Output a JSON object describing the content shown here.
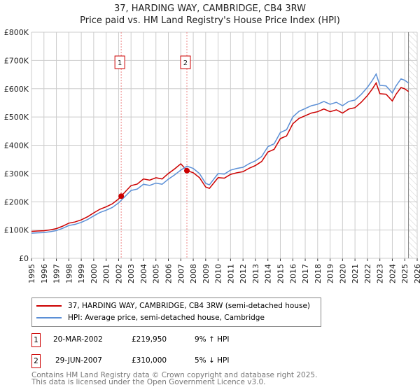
{
  "chart_data": {
    "type": "line",
    "title": "37, HARDING WAY, CAMBRIDGE, CB4 3RW",
    "subtitle": "Price paid vs. HM Land Registry's House Price Index (HPI)",
    "xlim": [
      1995,
      2026
    ],
    "ylim": [
      0,
      800000
    ],
    "x_ticks": [
      "1995",
      "1996",
      "1997",
      "1998",
      "1999",
      "2000",
      "2001",
      "2002",
      "2003",
      "2004",
      "2005",
      "2006",
      "2007",
      "2008",
      "2009",
      "2010",
      "2011",
      "2012",
      "2013",
      "2014",
      "2015",
      "2016",
      "2017",
      "2018",
      "2019",
      "2020",
      "2021",
      "2022",
      "2023",
      "2024",
      "2025",
      "2026"
    ],
    "y_ticks": [
      {
        "v": 0,
        "label": "£0"
      },
      {
        "v": 100000,
        "label": "£100K"
      },
      {
        "v": 200000,
        "label": "£200K"
      },
      {
        "v": 300000,
        "label": "£300K"
      },
      {
        "v": 400000,
        "label": "£400K"
      },
      {
        "v": 500000,
        "label": "£500K"
      },
      {
        "v": 600000,
        "label": "£600K"
      },
      {
        "v": 700000,
        "label": "£700K"
      },
      {
        "v": 800000,
        "label": "£800K"
      }
    ],
    "grid": true,
    "hpi_x": [
      1995,
      1995.5,
      1996,
      1996.5,
      1997,
      1997.5,
      1998,
      1998.5,
      1999,
      1999.5,
      2000,
      2000.5,
      2001,
      2001.5,
      2002,
      2002.5,
      2003,
      2003.5,
      2004,
      2004.5,
      2005,
      2005.5,
      2006,
      2006.5,
      2007,
      2007.5,
      2008,
      2008.5,
      2009,
      2009.3,
      2010,
      2010.5,
      2011,
      2011.5,
      2012,
      2012.5,
      2013,
      2013.5,
      2014,
      2014.5,
      2015,
      2015.5,
      2016,
      2016.5,
      2017,
      2017.5,
      2018,
      2018.5,
      2019,
      2019.5,
      2020,
      2020.5,
      2021,
      2021.5,
      2022,
      2022.4,
      2022.7,
      2023,
      2023.5,
      2024,
      2024.3,
      2024.7,
      2025,
      2025.3
    ],
    "hpi_y": [
      89000,
      90000,
      91000,
      94000,
      98000,
      106000,
      116000,
      120000,
      127000,
      137000,
      150000,
      162000,
      170000,
      180000,
      196000,
      218000,
      240000,
      245000,
      262000,
      258000,
      266000,
      262000,
      280000,
      295000,
      312000,
      326000,
      318000,
      300000,
      265000,
      260000,
      300000,
      298000,
      312000,
      318000,
      322000,
      335000,
      345000,
      360000,
      395000,
      405000,
      445000,
      455000,
      500000,
      520000,
      530000,
      540000,
      545000,
      555000,
      545000,
      552000,
      540000,
      555000,
      560000,
      580000,
      605000,
      630000,
      652000,
      612000,
      610000,
      585000,
      610000,
      635000,
      630000,
      620000
    ],
    "series": [
      {
        "name": "37, HARDING WAY, CAMBRIDGE, CB4 3RW (semi-detached house)",
        "color": "#cc0000"
      },
      {
        "name": "HPI: Average price, semi-detached house, Cambridge",
        "color": "#5b8fd6"
      }
    ],
    "sales": [
      {
        "id": "1",
        "x": 2002.21,
        "price": 219950,
        "date": "20-MAR-2002",
        "price_label": "£219,950",
        "delta": "9% ↑ HPI"
      },
      {
        "id": "2",
        "x": 2007.49,
        "price": 310000,
        "date": "29-JUN-2007",
        "price_label": "£310,000",
        "delta": "5% ↓ HPI"
      }
    ],
    "forecast_from": 2025.3
  },
  "footer": {
    "line1": "Contains HM Land Registry data © Crown copyright and database right 2025.",
    "line2": "This data is licensed under the Open Government Licence v3.0."
  }
}
